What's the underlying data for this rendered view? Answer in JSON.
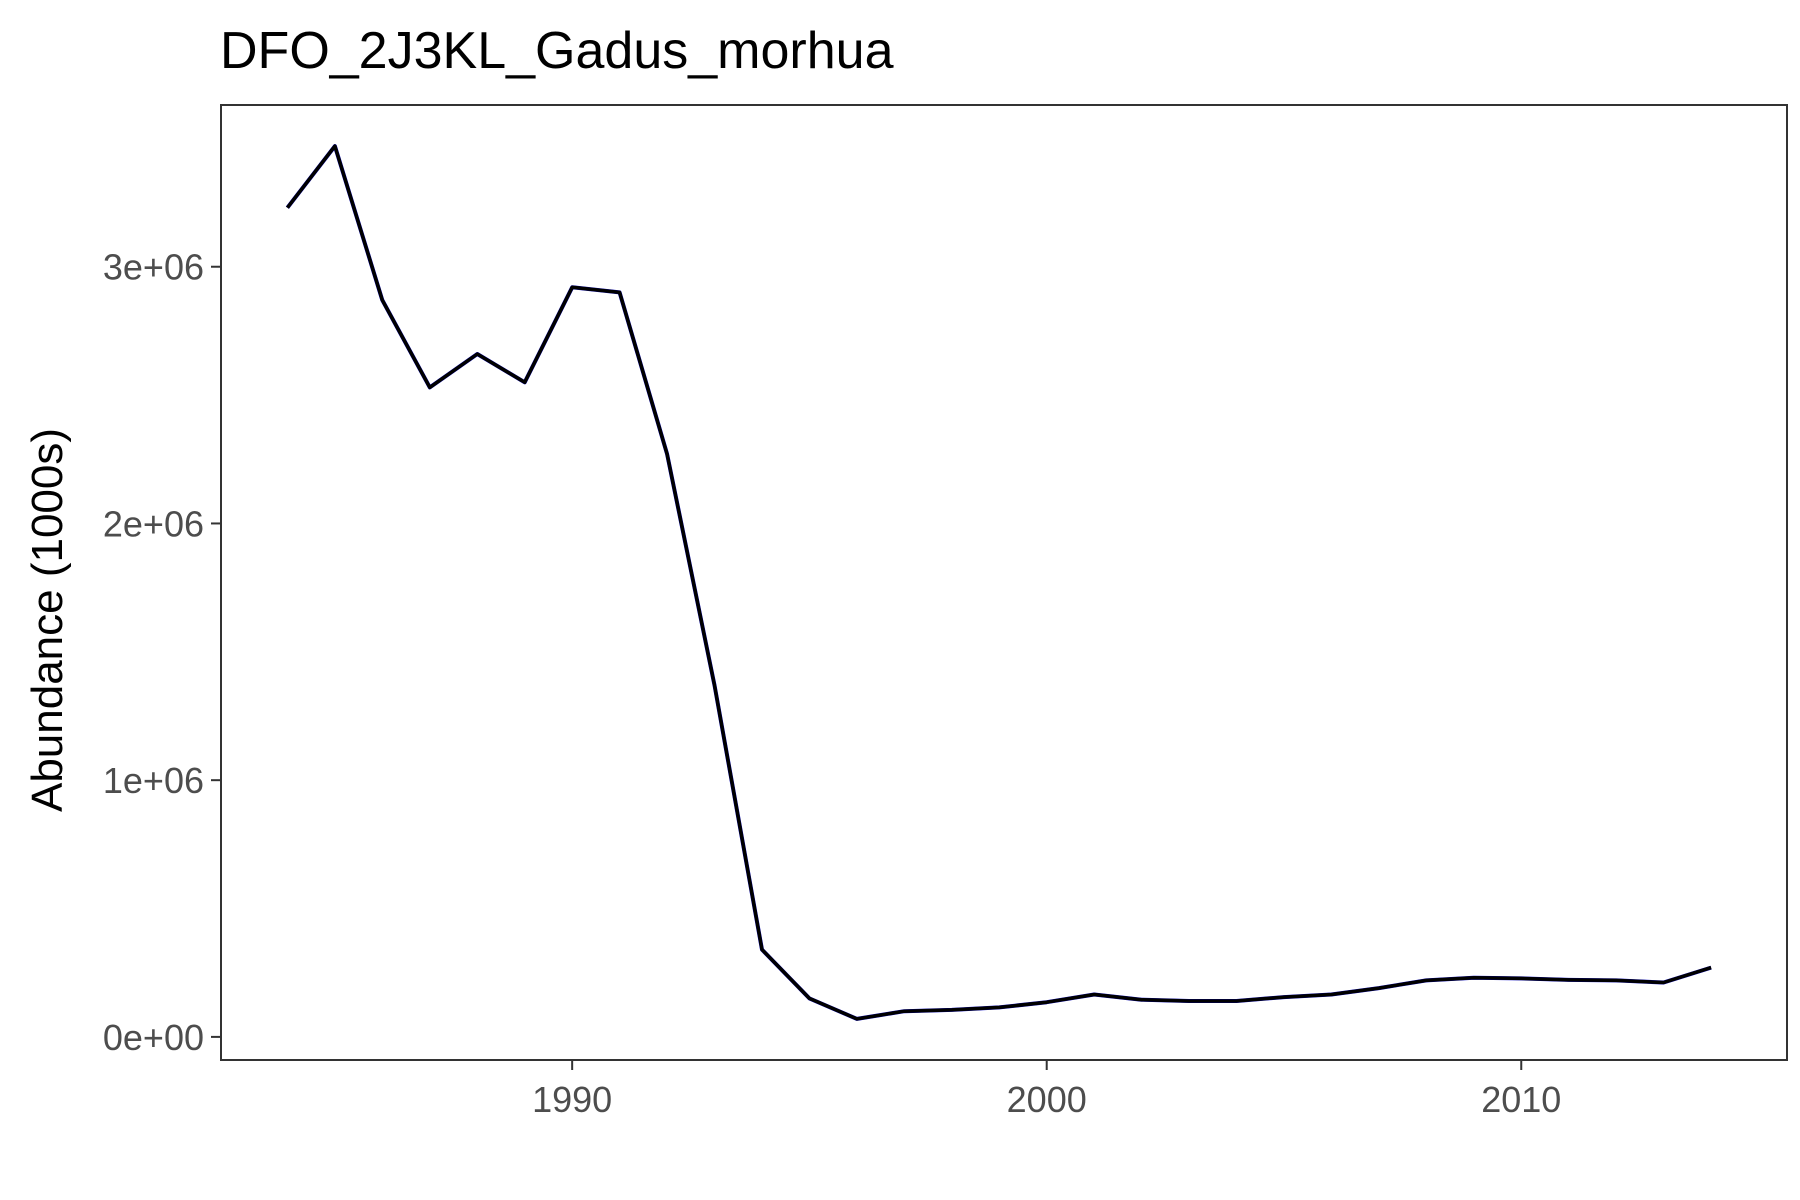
{
  "chart_data": {
    "type": "line",
    "title": "DFO_2J3KL_Gadus_morhua",
    "xlabel": "",
    "ylabel": "Abundance (1000s)",
    "xlim": [
      1982.6,
      2015.6
    ],
    "ylim": [
      -90000,
      3630000
    ],
    "x_ticks": [
      1990,
      2000,
      2010
    ],
    "x_tick_labels": [
      "1990",
      "2000",
      "2010"
    ],
    "y_ticks": [
      0,
      1000000,
      2000000,
      3000000
    ],
    "y_tick_labels": [
      "0e+00",
      "1e+06",
      "2e+06",
      "3e+06"
    ],
    "grid": false,
    "legend": "none",
    "colors": {
      "line": "#000000",
      "underlay": "#0000cc"
    },
    "x": [
      1984,
      1985,
      1986,
      1987,
      1988,
      1989,
      1990,
      1991,
      1992,
      1993,
      1994,
      1995,
      1996,
      1997,
      1998,
      1999,
      2000,
      2001,
      2002,
      2003,
      2004,
      2005,
      2006,
      2007,
      2008,
      2009,
      2010,
      2011,
      2012,
      2013,
      2014
    ],
    "series": [
      {
        "values": [
          3230000,
          3470000,
          2870000,
          2530000,
          2660000,
          2550000,
          2920000,
          2900000,
          2270000,
          1370000,
          340000,
          150000,
          70000,
          100000,
          105000,
          115000,
          135000,
          165000,
          145000,
          140000,
          140000,
          155000,
          165000,
          190000,
          220000,
          230000,
          228000,
          222000,
          220000,
          212000,
          270000
        ]
      }
    ]
  }
}
